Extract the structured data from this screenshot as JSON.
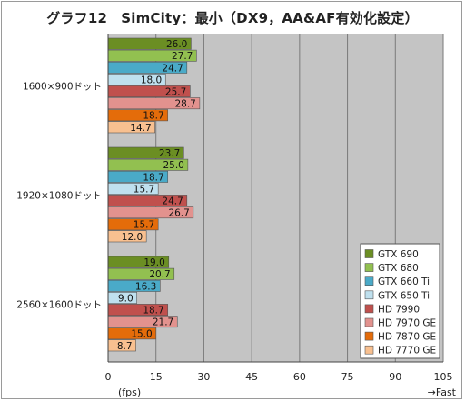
{
  "title": "グラフ12　SimCity：最小（DX9，AA&AF有効化設定）",
  "chart_data": {
    "type": "bar",
    "orientation": "horizontal",
    "categories": [
      "1600×900ドット",
      "1920×1080ドット",
      "2560×1600ドット"
    ],
    "series": [
      {
        "name": "GTX 690",
        "color": "#6b8e23",
        "values": [
          26.0,
          23.7,
          19.0
        ]
      },
      {
        "name": "GTX 680",
        "color": "#92c050",
        "values": [
          27.7,
          25.0,
          20.7
        ]
      },
      {
        "name": "GTX 660 Ti",
        "color": "#4aaac8",
        "values": [
          24.7,
          18.7,
          16.3
        ]
      },
      {
        "name": "GTX 650 Ti",
        "color": "#bfe0ee",
        "values": [
          18.0,
          15.7,
          9.0
        ]
      },
      {
        "name": "HD 7990",
        "color": "#c0504d",
        "values": [
          25.7,
          24.7,
          18.7
        ]
      },
      {
        "name": "HD 7970 GE",
        "color": "#e2928e",
        "values": [
          28.7,
          26.7,
          21.7
        ]
      },
      {
        "name": "HD 7870 GE",
        "color": "#e46c0a",
        "values": [
          18.7,
          15.7,
          15.0
        ]
      },
      {
        "name": "HD 7770 GE",
        "color": "#f8c090",
        "values": [
          14.7,
          12.0,
          8.7
        ]
      }
    ],
    "xlim": [
      0,
      105
    ],
    "xticks": [
      0,
      15,
      30,
      45,
      60,
      75,
      90,
      105
    ],
    "xlabel": "(fps)",
    "direction_note": "→Fast",
    "grid": true,
    "legend": "bottom-right"
  },
  "colors": {
    "plot_background": "#c4c4c4",
    "grid": "#7a7a7a",
    "bar_outline": "#555555"
  }
}
